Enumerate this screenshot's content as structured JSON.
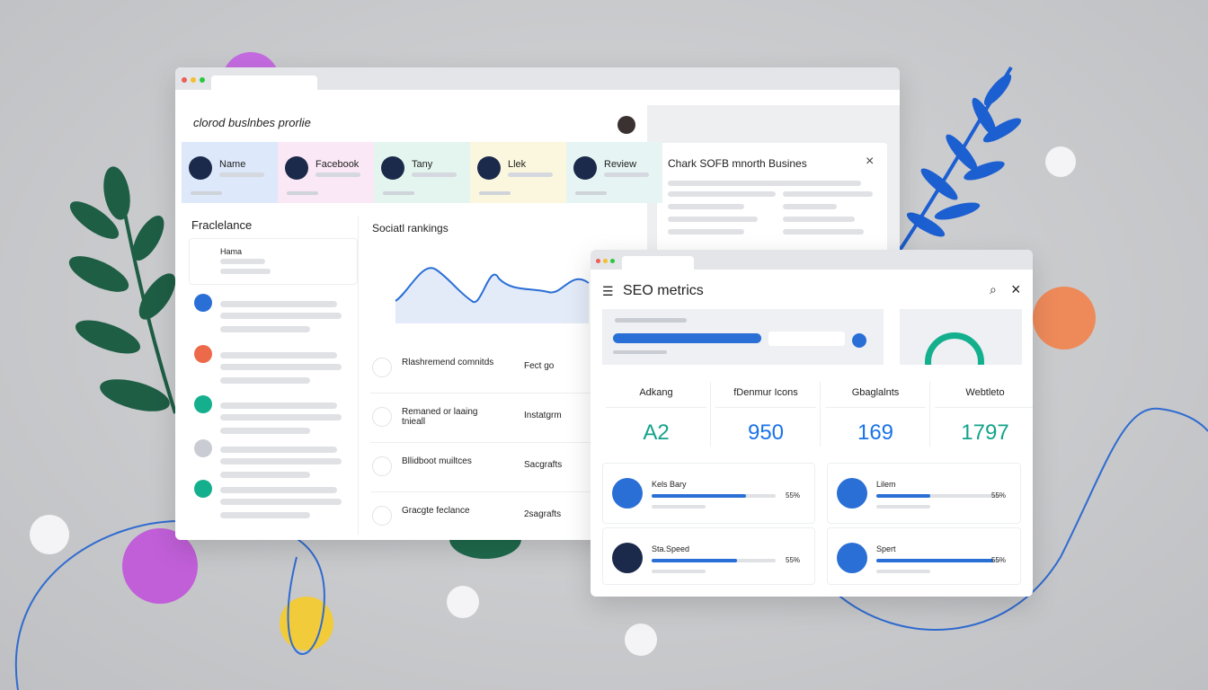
{
  "profile_window": {
    "title": "clorod buslnbes prorlie",
    "cards": [
      "Name",
      "Facebook",
      "Tany",
      "Llek",
      "Review"
    ],
    "sidebar": {
      "title": "Fraclelance",
      "item": "Hama"
    },
    "chart": {
      "title": "Sociatl rankings"
    },
    "list": [
      {
        "label": "Rlashremend comnitds",
        "value": "Fect go"
      },
      {
        "label": "Remaned or laaing tnieall",
        "value": "Instatgrm"
      },
      {
        "label": "Bllidboot muiltces",
        "value": "Sacgrafts"
      },
      {
        "label": "Gracgte feclance",
        "value": "2sagrafts"
      }
    ],
    "panel": {
      "title": "Chark SOFB mnorth Busines"
    }
  },
  "seo_window": {
    "title": "SEO metrics",
    "metrics": [
      {
        "label": "Adkang",
        "value": "A2"
      },
      {
        "label": "fDenmur Icons",
        "value": 950
      },
      {
        "label": "Gbaglalnts",
        "value": 169
      },
      {
        "label": "Webtleto",
        "value": 1797
      }
    ],
    "cards": [
      {
        "label": "Kels Bary",
        "value": "55%"
      },
      {
        "label": "Lilem",
        "value": "55%"
      },
      {
        "label": "Sta.Speed",
        "value": "55%"
      },
      {
        "label": "Spert",
        "value": "55%"
      }
    ]
  }
}
